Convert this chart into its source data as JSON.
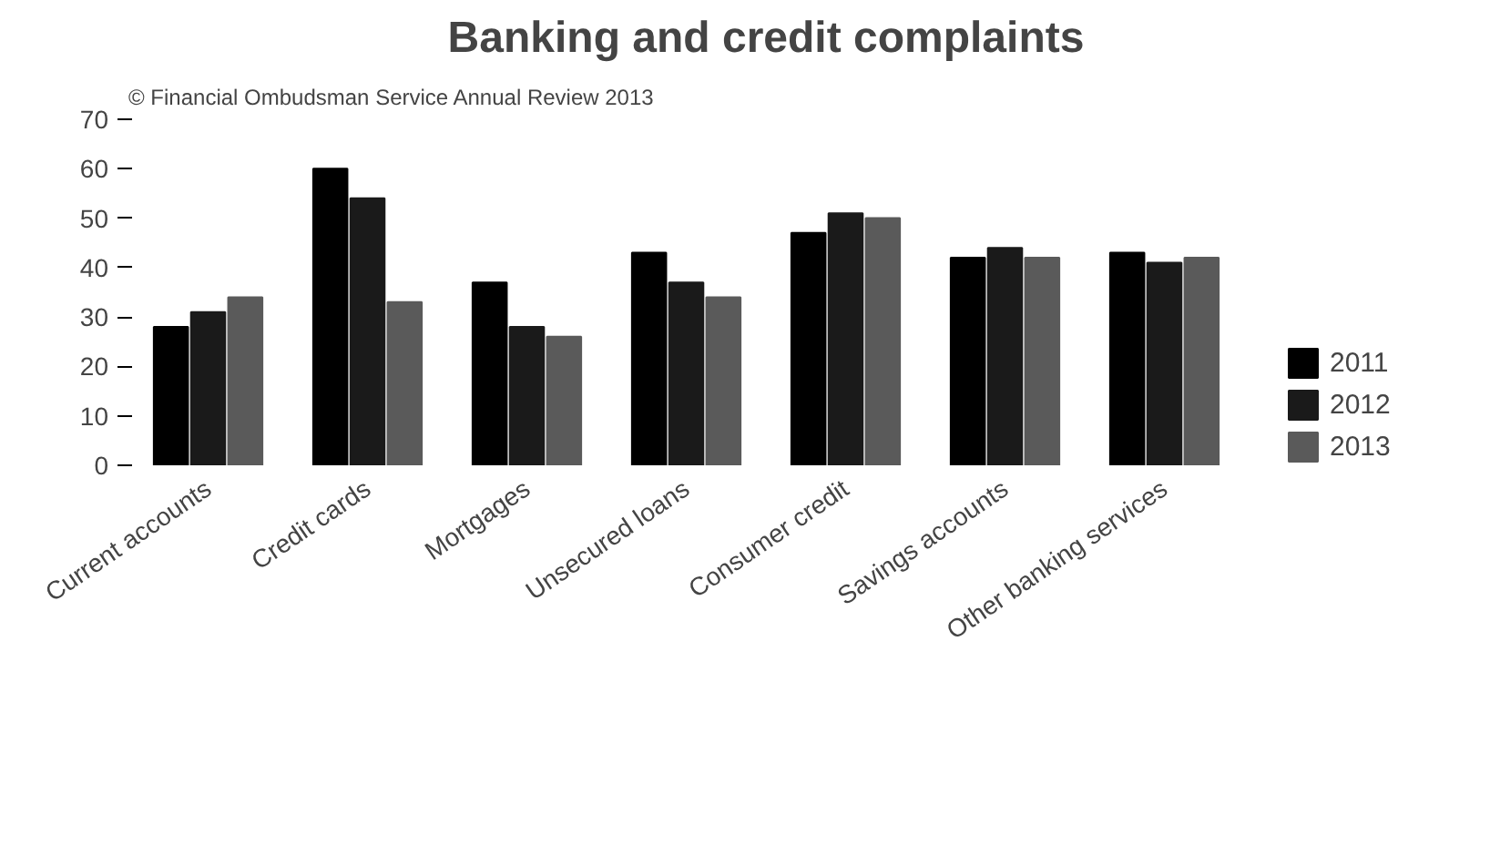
{
  "chart_data": {
    "type": "bar",
    "title": "Banking and credit complaints",
    "annotations": [
      "© Financial Ombudsman Service Annual Review 2013"
    ],
    "categories": [
      "Current accounts",
      "Credit cards",
      "Mortgages",
      "Unsecured loans",
      "Consumer credit",
      "Savings accounts",
      "Other banking services"
    ],
    "series": [
      {
        "name": "2011",
        "color": "#000000",
        "values": [
          28,
          60,
          37,
          43,
          47,
          42,
          43
        ]
      },
      {
        "name": "2012",
        "color": "#1a1a1a",
        "values": [
          31,
          54,
          28,
          37,
          51,
          44,
          41
        ]
      },
      {
        "name": "2013",
        "color": "#5a5a5a",
        "values": [
          34,
          33,
          26,
          34,
          50,
          42,
          42
        ]
      }
    ],
    "ylim": [
      0,
      70
    ],
    "yticks": [
      0,
      10,
      20,
      30,
      40,
      50,
      60,
      70
    ],
    "grid": false,
    "legend": "right"
  }
}
